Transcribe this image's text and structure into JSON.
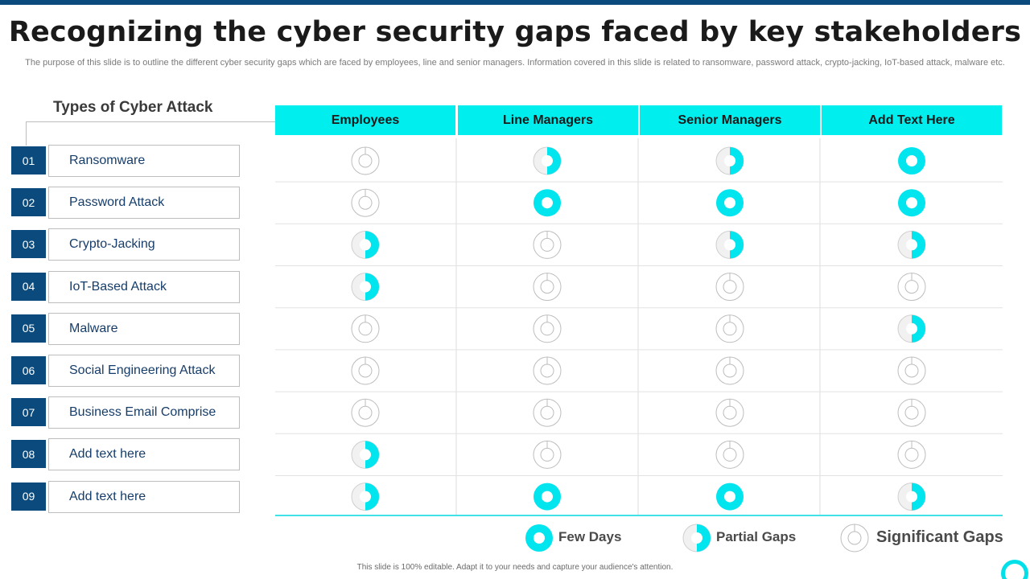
{
  "slide": {
    "title": "Recognizing the cyber security gaps faced by key stakeholders",
    "subtitle": "The purpose of this slide is to outline the different cyber security gaps which are faced by employees, line and senior managers. Information covered in this slide is related to ransomware, password attack, crypto-jacking, IoT-based attack, malware etc.",
    "footer": "This slide is 100% editable. Adapt it to your needs and capture your audience's attention."
  },
  "colors": {
    "accent": "#00eeee",
    "dark_blue": "#0b4a7c",
    "full": "#00e5ee",
    "empty": "#bdbdbd"
  },
  "types_heading": "Types of Cyber Attack",
  "columns": [
    "Employees",
    "Line Managers",
    "Senior Managers",
    "Add Text Here"
  ],
  "rows": [
    {
      "num": "01",
      "label": "Ransomware",
      "levels": [
        "empty",
        "partial",
        "partial",
        "full"
      ]
    },
    {
      "num": "02",
      "label": "Password Attack",
      "levels": [
        "empty",
        "full",
        "full",
        "full"
      ]
    },
    {
      "num": "03",
      "label": "Crypto-Jacking",
      "levels": [
        "partial",
        "empty",
        "partial",
        "partial"
      ]
    },
    {
      "num": "04",
      "label": "IoT-Based Attack",
      "levels": [
        "partial",
        "empty",
        "empty",
        "empty"
      ]
    },
    {
      "num": "05",
      "label": "Malware",
      "levels": [
        "empty",
        "empty",
        "empty",
        "partial"
      ]
    },
    {
      "num": "06",
      "label": "Social Engineering Attack",
      "levels": [
        "empty",
        "empty",
        "empty",
        "empty"
      ]
    },
    {
      "num": "07",
      "label": "Business Email Comprise",
      "levels": [
        "empty",
        "empty",
        "empty",
        "empty"
      ]
    },
    {
      "num": "08",
      "label": "Add text here",
      "levels": [
        "partial",
        "empty",
        "empty",
        "empty"
      ]
    },
    {
      "num": "09",
      "label": "Add text here",
      "levels": [
        "partial",
        "full",
        "full",
        "partial"
      ]
    }
  ],
  "legend": [
    {
      "level": "full",
      "label": "Few Days"
    },
    {
      "level": "partial",
      "label": "Partial Gaps"
    },
    {
      "level": "empty",
      "label": "Significant Gaps"
    }
  ]
}
